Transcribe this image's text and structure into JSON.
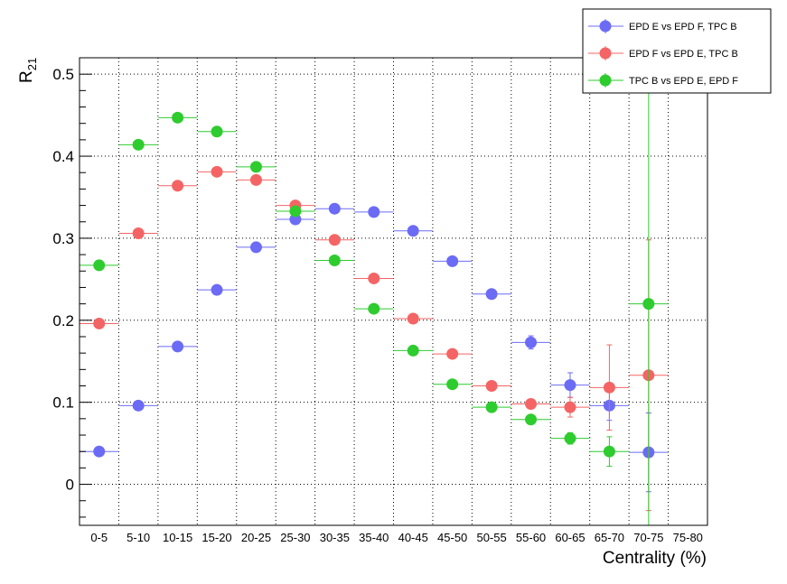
{
  "chart_data": {
    "type": "scatter",
    "xlabel": "Centrality (%)",
    "ylabel_main": "R",
    "ylabel_sub": "21",
    "ylim": [
      -0.05,
      0.52
    ],
    "yticks": [
      0,
      0.1,
      0.2,
      0.3,
      0.4,
      0.5
    ],
    "ytick_labels": [
      "0",
      "0.1",
      "0.2",
      "0.3",
      "0.4",
      "0.5"
    ],
    "categories": [
      "0-5",
      "5-10",
      "10-15",
      "15-20",
      "20-25",
      "25-30",
      "30-35",
      "35-40",
      "40-45",
      "45-50",
      "50-55",
      "55-60",
      "60-65",
      "65-70",
      "70-75",
      "75-80"
    ],
    "grid": true,
    "legend_position": "top-right",
    "series": [
      {
        "name": "EPD E vs EPD F, TPC B",
        "color": "#6b6bf5",
        "values": [
          0.04,
          0.096,
          0.168,
          0.237,
          0.289,
          0.323,
          0.336,
          0.332,
          0.309,
          0.272,
          0.232,
          0.173,
          0.121,
          0.096,
          0.039,
          null
        ],
        "errors": [
          0.003,
          0.003,
          0.003,
          0.003,
          0.003,
          0.003,
          0.003,
          0.003,
          0.003,
          0.004,
          0.005,
          0.008,
          0.015,
          0.018,
          0.048,
          null
        ]
      },
      {
        "name": "EPD F vs EPD E, TPC B",
        "color": "#f56464",
        "values": [
          0.196,
          0.306,
          0.364,
          0.381,
          0.371,
          0.34,
          0.298,
          0.251,
          0.202,
          0.159,
          0.12,
          0.098,
          0.094,
          0.118,
          0.133,
          null
        ],
        "errors": [
          0.003,
          0.003,
          0.003,
          0.003,
          0.003,
          0.003,
          0.003,
          0.003,
          0.003,
          0.004,
          0.005,
          0.006,
          0.012,
          0.052,
          0.165,
          null
        ]
      },
      {
        "name": "TPC B vs EPD E, EPD F",
        "color": "#2ecc2e",
        "values": [
          0.267,
          0.414,
          0.447,
          0.43,
          0.387,
          0.333,
          0.273,
          0.214,
          0.163,
          0.122,
          0.094,
          0.079,
          0.056,
          0.04,
          0.22,
          null
        ],
        "errors": [
          0.003,
          0.003,
          0.003,
          0.003,
          0.003,
          0.003,
          0.003,
          0.003,
          0.003,
          0.004,
          0.005,
          0.006,
          0.007,
          0.018,
          0.35,
          null
        ]
      }
    ]
  }
}
